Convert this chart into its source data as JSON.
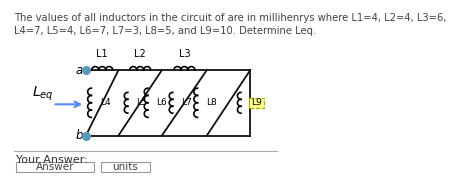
{
  "title_text": "The values of all inductors in the circuit of are in millihenrys where L1=4, L2=4, L3=6,\nL4=7, L5=4, L6=7, L7=3, L8=5, and L9=10. Determine Leq.",
  "title_fontsize": 7.2,
  "title_color": "#444444",
  "background_color": "#ffffff",
  "your_answer_text": "Your Answer:",
  "answer_label": "Answer",
  "units_label": "units",
  "L9_box_color": "#ffff88",
  "L9_box_edge": "#aaaa00",
  "arrow_color": "#5588ff",
  "wire_color": "#111111",
  "node_color": "#5599bb"
}
